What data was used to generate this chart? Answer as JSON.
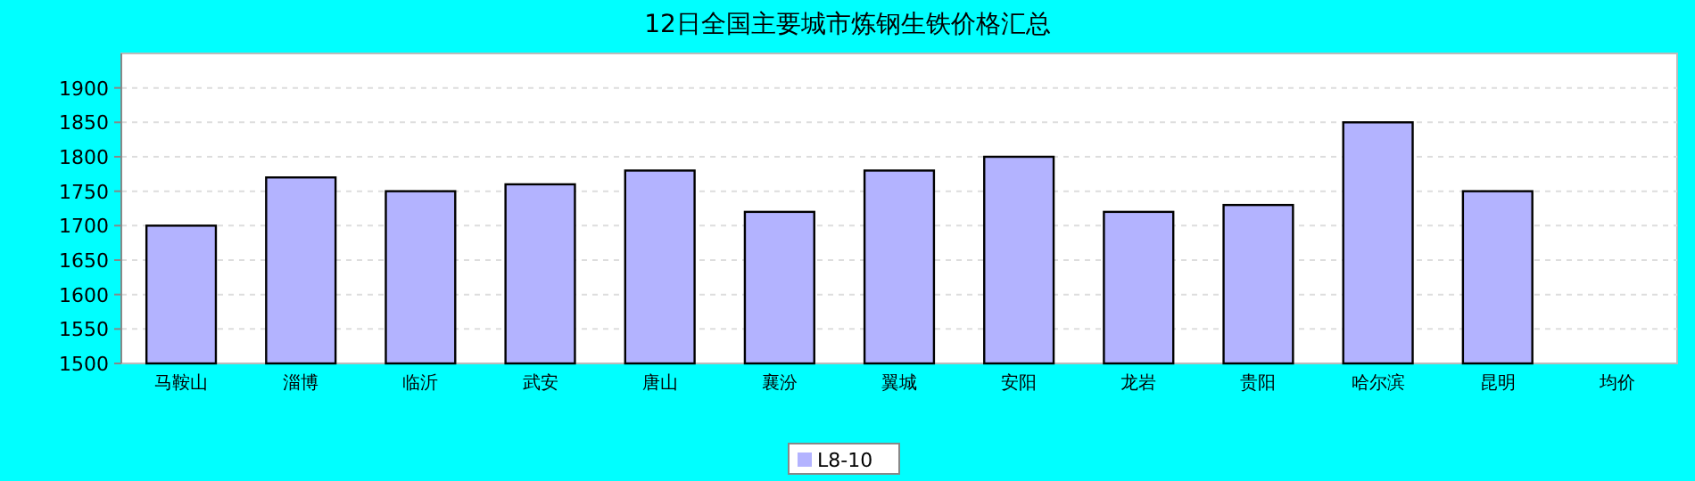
{
  "chart_data": {
    "type": "bar",
    "title": "12日全国主要城市炼钢生铁价格汇总",
    "categories": [
      "马鞍山",
      "淄博",
      "临沂",
      "武安",
      "唐山",
      "襄汾",
      "翼城",
      "安阳",
      "龙岩",
      "贵阳",
      "哈尔滨",
      "昆明",
      "均价"
    ],
    "series": [
      {
        "name": "L8-10",
        "color": "#b3b3ff",
        "values": [
          1700,
          1770,
          1750,
          1760,
          1780,
          1720,
          1780,
          1800,
          1720,
          1730,
          1850,
          1750,
          null
        ]
      }
    ],
    "ylim": [
      1500,
      1950
    ],
    "yticks": [
      1500,
      1550,
      1600,
      1650,
      1700,
      1750,
      1800,
      1850,
      1900
    ],
    "grid": "y",
    "legend": "bottom"
  }
}
